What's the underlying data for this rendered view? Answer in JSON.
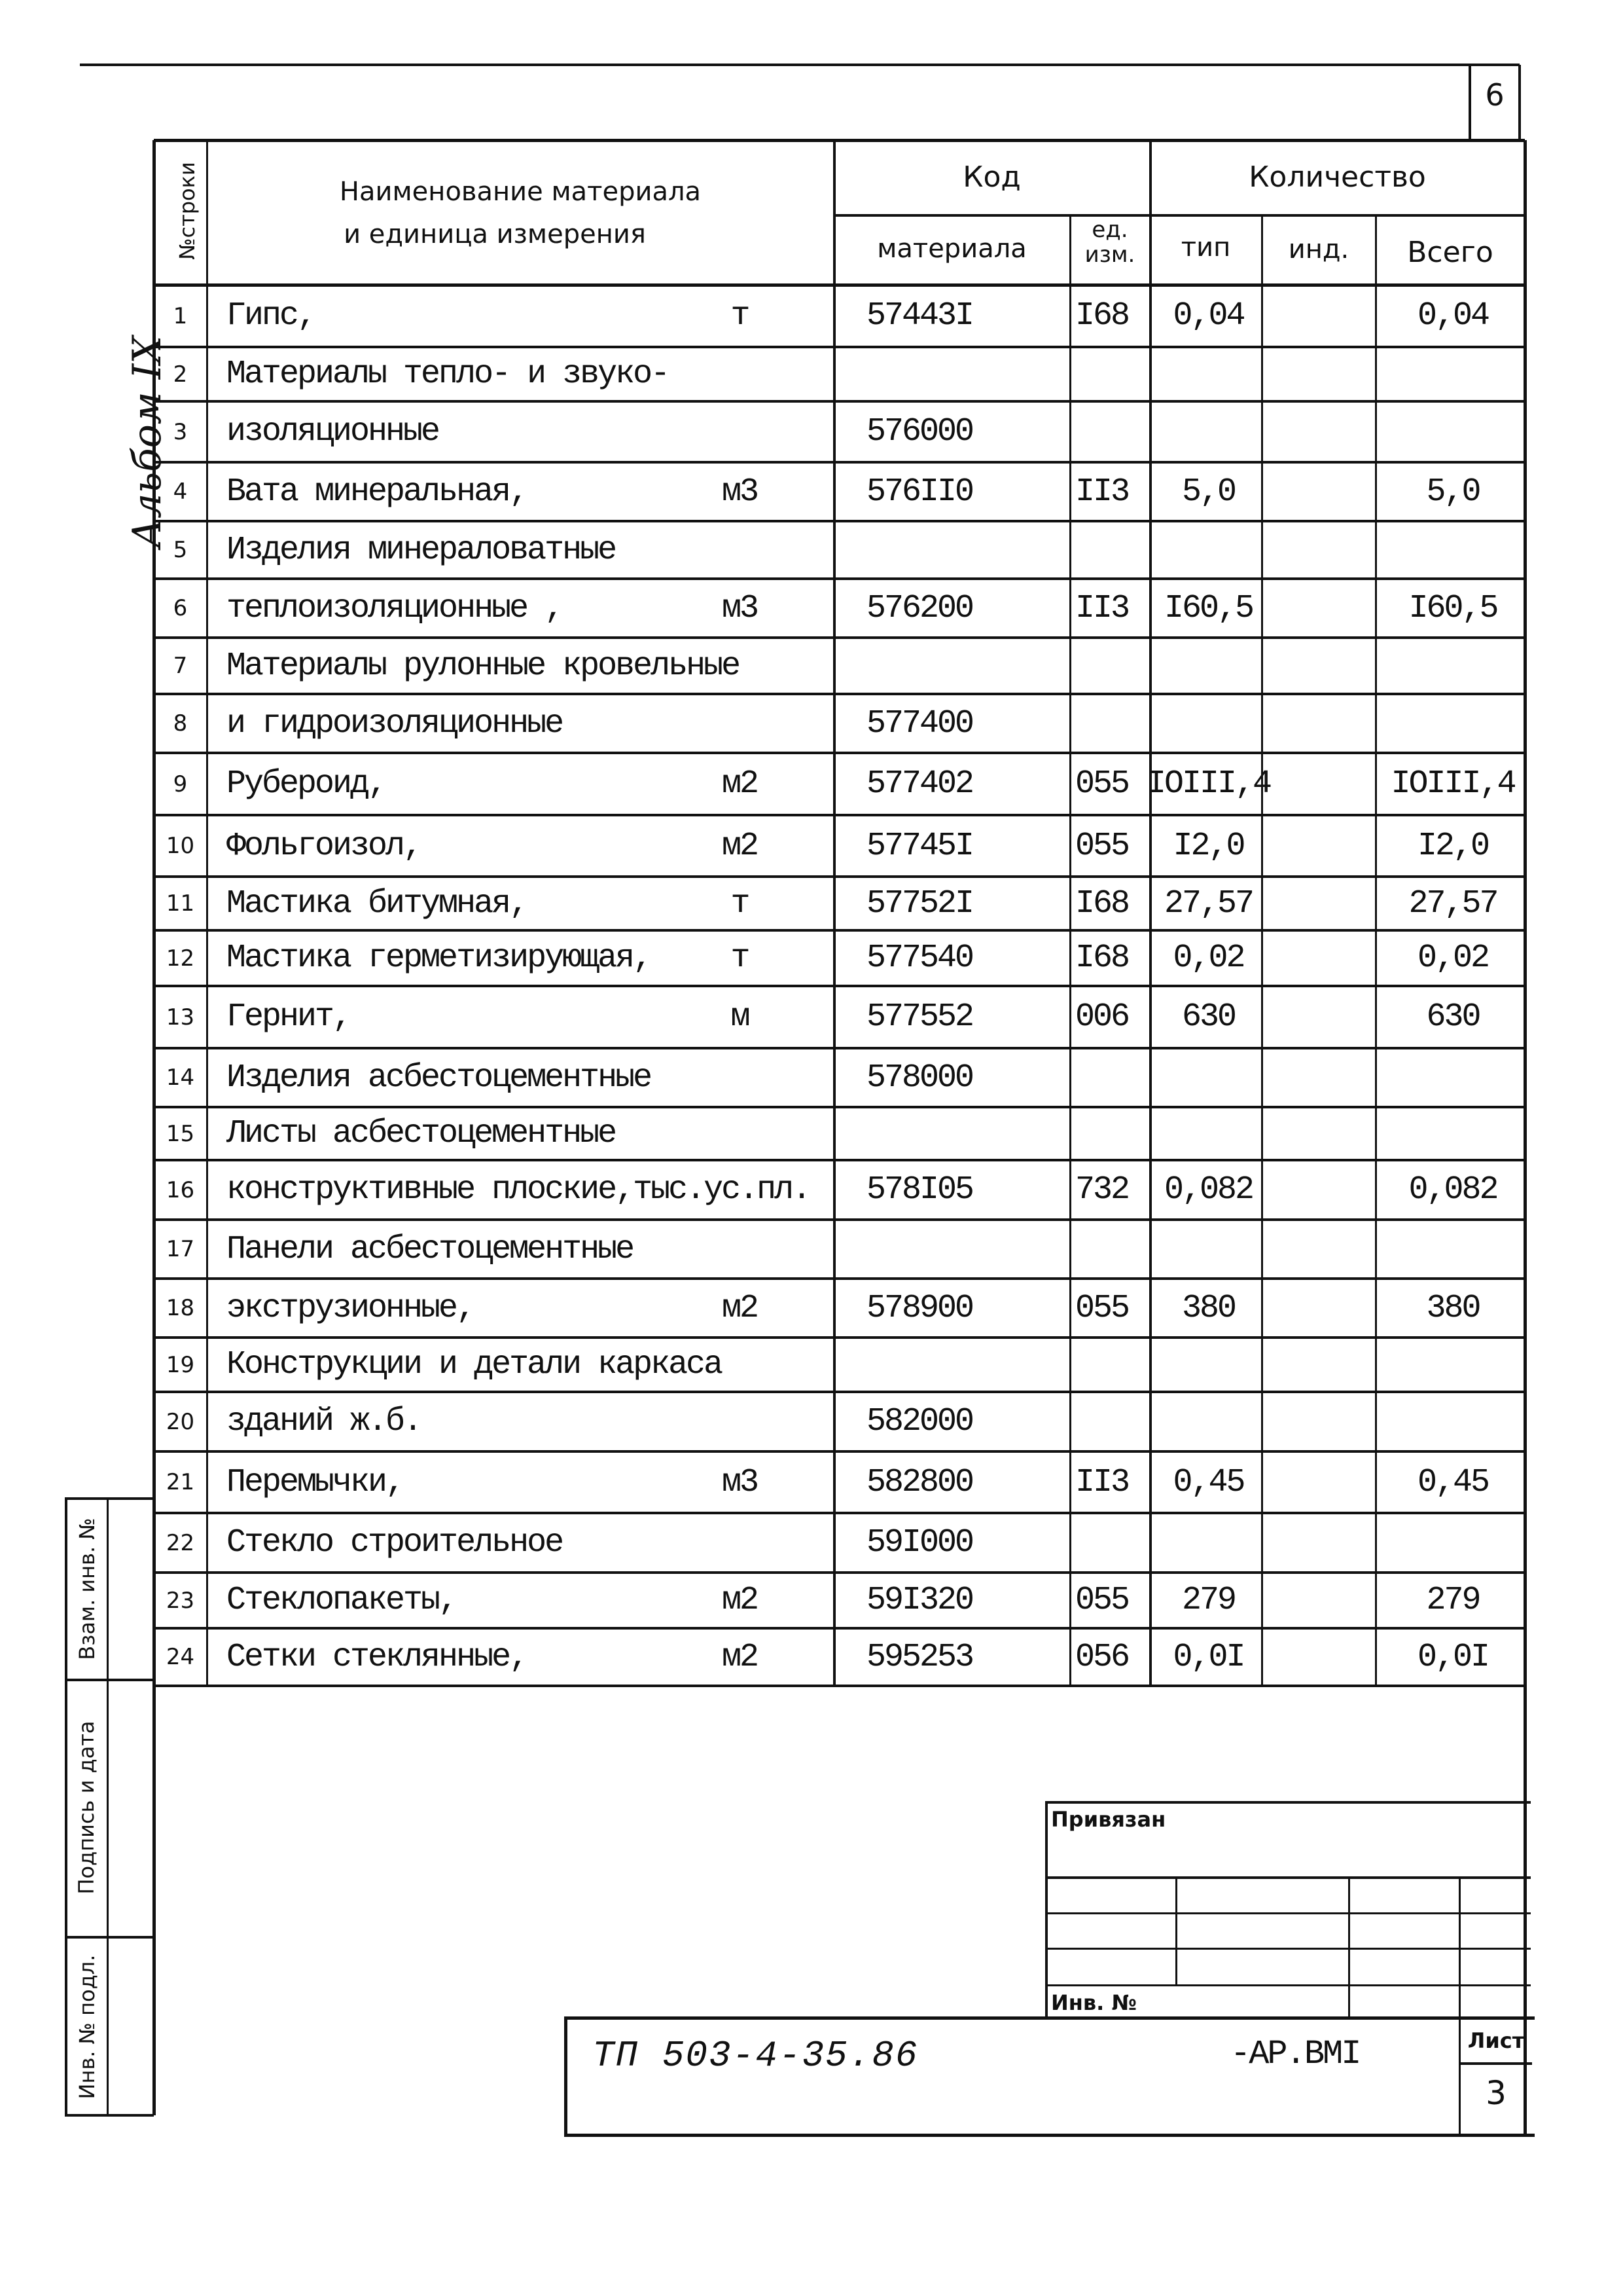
{
  "page_number": "6",
  "album_label": "Альбом IX",
  "header": {
    "row_no": "№строки",
    "name_line1": "Наименование материала",
    "name_line2": "и единица измерения",
    "code": "Код",
    "code_material": "материала",
    "code_unit": "ед. изм.",
    "quantity": "Количество",
    "qty_type": "тип",
    "qty_ind": "инд.",
    "qty_total": "Всего"
  },
  "rows": [
    {
      "n": "1",
      "name": "Гипс,",
      "unit": "т",
      "code": "57443I",
      "ed": "I68",
      "tip": "0,04",
      "ind": "",
      "total": "0,04"
    },
    {
      "n": "2",
      "name": "Материалы тепло- и звуко-",
      "unit": "",
      "code": "",
      "ed": "",
      "tip": "",
      "ind": "",
      "total": ""
    },
    {
      "n": "3",
      "name": "изоляционные",
      "unit": "",
      "code": "576000",
      "ed": "",
      "tip": "",
      "ind": "",
      "total": ""
    },
    {
      "n": "4",
      "name": "Вата минеральная,",
      "unit": "м3",
      "code": "576II0",
      "ed": "II3",
      "tip": "5,0",
      "ind": "",
      "total": "5,0"
    },
    {
      "n": "5",
      "name": "Изделия минераловатные",
      "unit": "",
      "code": "",
      "ed": "",
      "tip": "",
      "ind": "",
      "total": ""
    },
    {
      "n": "6",
      "name": "теплоизоляционные ,",
      "unit": "м3",
      "code": "576200",
      "ed": "II3",
      "tip": "I60,5",
      "ind": "",
      "total": "I60,5"
    },
    {
      "n": "7",
      "name": "Материалы рулонные кровельные",
      "unit": "",
      "code": "",
      "ed": "",
      "tip": "",
      "ind": "",
      "total": ""
    },
    {
      "n": "8",
      "name": "и гидроизоляционные",
      "unit": "",
      "code": "577400",
      "ed": "",
      "tip": "",
      "ind": "",
      "total": ""
    },
    {
      "n": "9",
      "name": "Рубероид,",
      "unit": "м2",
      "code": "577402",
      "ed": "055",
      "tip": "IOIII,4",
      "ind": "",
      "total": "IOIII,4"
    },
    {
      "n": "10",
      "name": "Фольгоизол,",
      "unit": "м2",
      "code": "57745I",
      "ed": "055",
      "tip": "I2,0",
      "ind": "",
      "total": "I2,0"
    },
    {
      "n": "11",
      "name": "Мастика битумная,",
      "unit": "т",
      "code": "57752I",
      "ed": "I68",
      "tip": "27,57",
      "ind": "",
      "total": "27,57"
    },
    {
      "n": "12",
      "name": "Мастика герметизирующая,",
      "unit": "т",
      "code": "577540",
      "ed": "I68",
      "tip": "0,02",
      "ind": "",
      "total": "0,02"
    },
    {
      "n": "13",
      "name": "Гернит,",
      "unit": "м",
      "code": "577552",
      "ed": "006",
      "tip": "630",
      "ind": "",
      "total": "630"
    },
    {
      "n": "14",
      "name": "Изделия асбестоцементные",
      "unit": "",
      "code": "578000",
      "ed": "",
      "tip": "",
      "ind": "",
      "total": ""
    },
    {
      "n": "15",
      "name": "Листы асбестоцементные",
      "unit": "",
      "code": "",
      "ed": "",
      "tip": "",
      "ind": "",
      "total": ""
    },
    {
      "n": "16",
      "name": "конструктивные плоские,тыс.ус.пл.",
      "unit": "",
      "code": "578I05",
      "ed": "732",
      "tip": "0,082",
      "ind": "",
      "total": "0,082"
    },
    {
      "n": "17",
      "name": "Панели асбестоцементные",
      "unit": "",
      "code": "",
      "ed": "",
      "tip": "",
      "ind": "",
      "total": ""
    },
    {
      "n": "18",
      "name": "экструзионные,",
      "unit": "м2",
      "code": "578900",
      "ed": "055",
      "tip": "380",
      "ind": "",
      "total": "380"
    },
    {
      "n": "19",
      "name": "Конструкции и детали каркаса",
      "unit": "",
      "code": "",
      "ed": "",
      "tip": "",
      "ind": "",
      "total": ""
    },
    {
      "n": "20",
      "name": "зданий ж.б.",
      "unit": "",
      "code": "582000",
      "ed": "",
      "tip": "",
      "ind": "",
      "total": ""
    },
    {
      "n": "21",
      "name": "Перемычки,",
      "unit": "м3",
      "code": "582800",
      "ed": "II3",
      "tip": "0,45",
      "ind": "",
      "total": "0,45"
    },
    {
      "n": "22",
      "name": "Стекло строительное",
      "unit": "",
      "code": "59I000",
      "ed": "",
      "tip": "",
      "ind": "",
      "total": ""
    },
    {
      "n": "23",
      "name": "Стеклопакеты,",
      "unit": "м2",
      "code": "59I320",
      "ed": "055",
      "tip": "279",
      "ind": "",
      "total": "279"
    },
    {
      "n": "24",
      "name": "Сетки стеклянные,",
      "unit": "м2",
      "code": "595253",
      "ed": "056",
      "tip": "0,0I",
      "ind": "",
      "total": "0,0I"
    }
  ],
  "side_stamp": {
    "replaced_inv": "Взам. инв. №",
    "signature_date": "Подпись и дата",
    "inv_original": "Инв. № подл."
  },
  "title_block": {
    "attached": "Привязан",
    "inv_no": "Инв. №",
    "doc_code": "ТП 503-4-35.86",
    "doc_suffix": "-АР.ВМI",
    "sheet_label": "Лист",
    "sheet_number": "3"
  }
}
